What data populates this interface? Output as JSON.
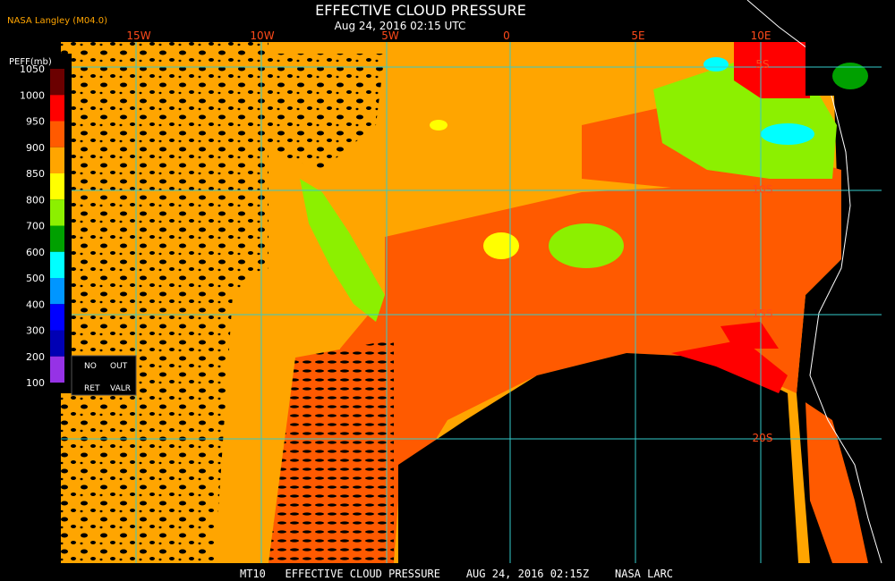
{
  "header": {
    "title": "EFFECTIVE CLOUD PRESSURE",
    "subtitle": "Aug 24, 2016 02:15 UTC",
    "source": "NASA Langley (M04.0)"
  },
  "legend": {
    "title": "PEFF(mb)",
    "labels": [
      1050,
      1000,
      950,
      900,
      850,
      800,
      700,
      600,
      500,
      400,
      300,
      200,
      100
    ],
    "colors": [
      "#6b0000",
      "#ff0000",
      "#ff5a00",
      "#ffa500",
      "#ffff00",
      "#8cf000",
      "#00a000",
      "#00ffff",
      "#0096ff",
      "#0000ff",
      "#0000b4",
      "#9632e6"
    ],
    "no_data": {
      "left_top": "NO",
      "left_bottom": "RET",
      "right_top": "OUT",
      "right_bottom": "VALR"
    }
  },
  "map": {
    "lon_labels": [
      "15W",
      "10W",
      "5W",
      "0",
      "5E",
      "10E"
    ],
    "lat_labels": [
      "5S",
      "10S",
      "15S",
      "20S"
    ]
  },
  "footer": "MT10   EFFECTIVE CLOUD PRESSURE    AUG 24, 2016 02:15Z    NASA LARC"
}
